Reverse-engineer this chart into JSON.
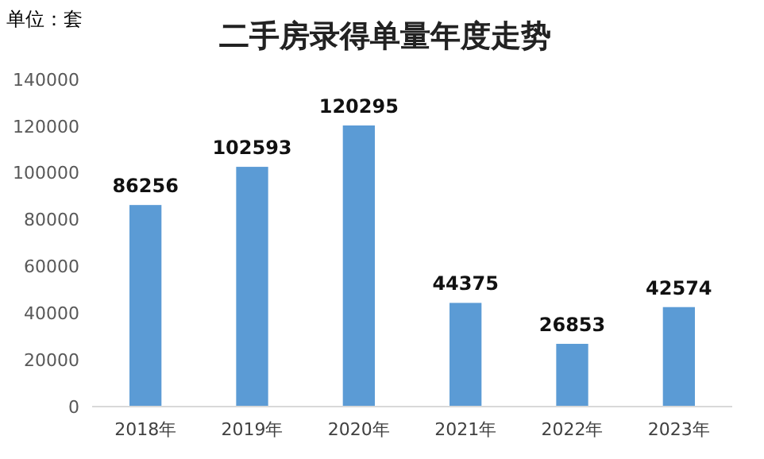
{
  "chart_data": {
    "type": "bar",
    "title": "二手房录得单量年度走势",
    "annotations": [
      "单位：套"
    ],
    "categories": [
      "2018年",
      "2019年",
      "2020年",
      "2021年",
      "2022年",
      "2023年"
    ],
    "values": [
      86256,
      102593,
      120295,
      44375,
      26853,
      42574
    ],
    "color": "#5b9bd5",
    "ylim": [
      0,
      140000
    ],
    "yticks": [
      0,
      20000,
      40000,
      60000,
      80000,
      100000,
      120000,
      140000
    ],
    "data_labels": true,
    "grid": false
  }
}
